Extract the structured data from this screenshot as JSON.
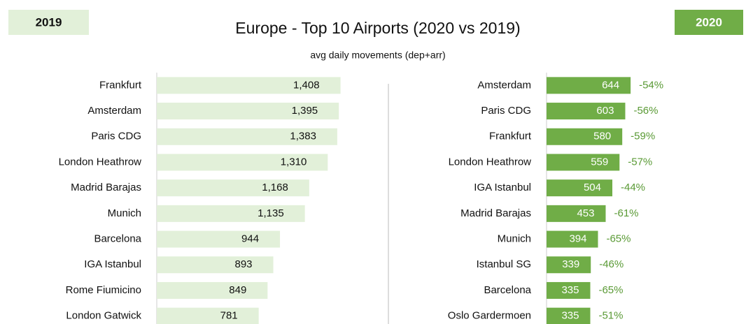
{
  "title": "Europe - Top 10 Airports (2020 vs 2019)",
  "subtitle": "avg daily movements (dep+arr)",
  "chart_data": [
    {
      "type": "bar",
      "label": "2019",
      "color": "#e2f0d9",
      "categories": [
        "Frankfurt",
        "Amsterdam",
        "Paris CDG",
        "London Heathrow",
        "Madrid Barajas",
        "Munich",
        "Barcelona",
        "IGA Istanbul",
        "Rome Fiumicino",
        "London Gatwick"
      ],
      "values": [
        1408,
        1395,
        1383,
        1310,
        1168,
        1135,
        944,
        893,
        849,
        781
      ],
      "value_labels": [
        "1,408",
        "1,395",
        "1,383",
        "1,310",
        "1,168",
        "1,135",
        "944",
        "893",
        "849",
        "781"
      ]
    },
    {
      "type": "bar",
      "label": "2020",
      "color": "#70ad47",
      "categories": [
        "Amsterdam",
        "Paris CDG",
        "Frankfurt",
        "London Heathrow",
        "IGA Istanbul",
        "Madrid Barajas",
        "Munich",
        "Istanbul SG",
        "Barcelona",
        "Oslo Gardermoen"
      ],
      "values": [
        644,
        603,
        580,
        559,
        504,
        453,
        394,
        339,
        335,
        335
      ],
      "change_labels": [
        "-54%",
        "-56%",
        "-59%",
        "-57%",
        "-44%",
        "-61%",
        "-65%",
        "-46%",
        "-65%",
        "-51%"
      ]
    }
  ]
}
